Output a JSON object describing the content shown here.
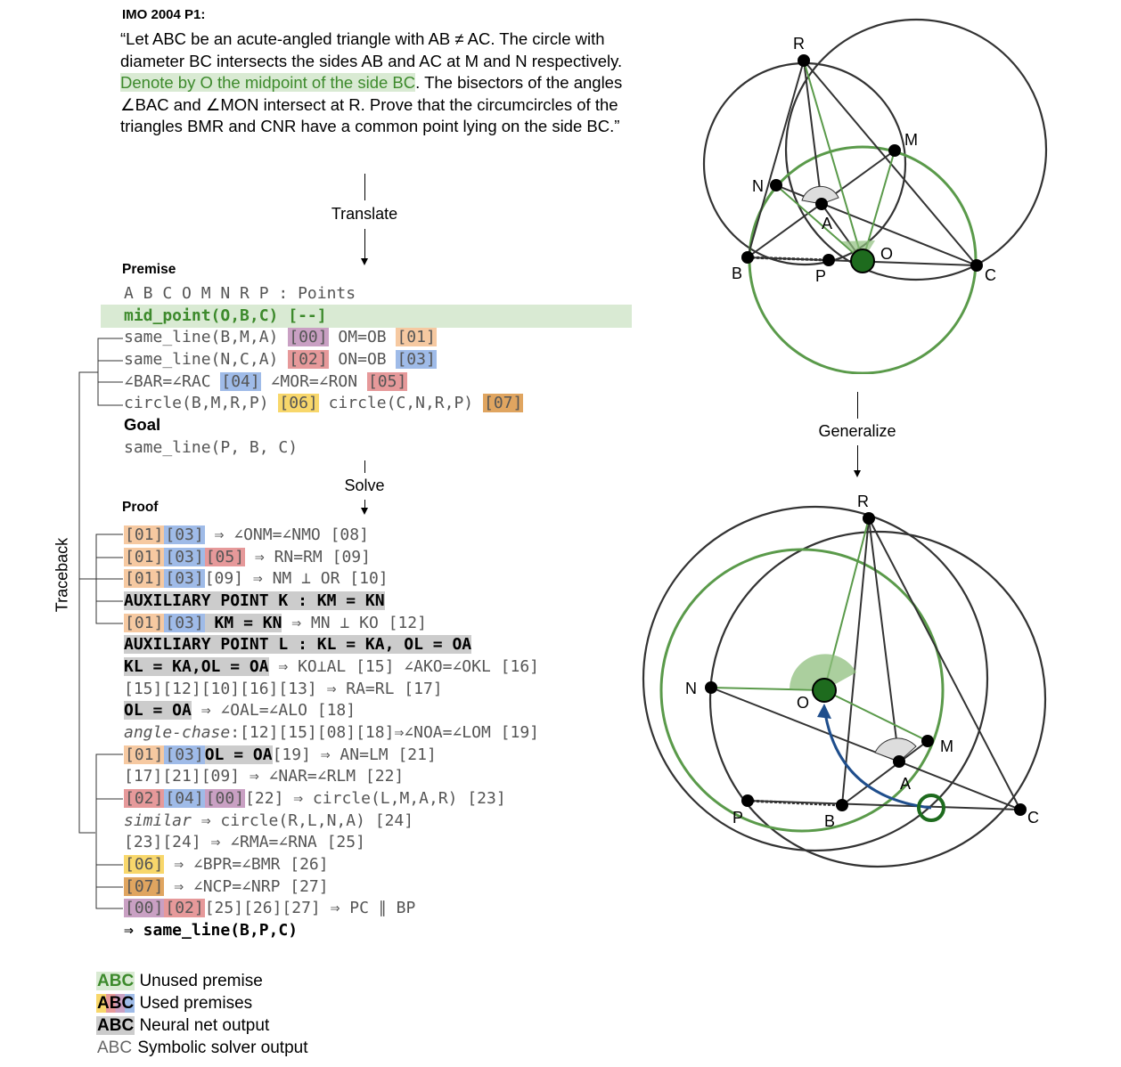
{
  "title": "IMO 2004 P1:",
  "problem": {
    "part1": "“Let ABC be an acute-angled triangle with AB ≠ AC. The circle with diameter BC intersects the sides AB and AC at M and N respectively. ",
    "highlight": "Denote by O the midpoint of the side BC",
    "part2": ". The bisectors of the angles ∠BAC and ∠MON intersect at R. Prove that the circumcircles of the triangles BMR and CNR have a common point lying on the side BC.”"
  },
  "flow": {
    "translate": "Translate",
    "solve": "Solve",
    "generalize": "Generalize",
    "traceback": "Traceback"
  },
  "premise": {
    "heading": "Premise",
    "points": "A B C O M N R P : Points",
    "unused": "mid_point(O,B,C) [--]",
    "rows": [
      {
        "a": "same_line(B,M,A) ",
        "t1": "[00]",
        "b": " OM=OB ",
        "t2": "[01]"
      },
      {
        "a": "same_line(N,C,A) ",
        "t1": "[02]",
        "b": " ON=OB ",
        "t2": "[03]"
      },
      {
        "a": "∠BAR=∠RAC ",
        "t1": "[04]",
        "b": " ∠MOR=∠RON ",
        "t2": "[05]"
      },
      {
        "a": "circle(B,M,R,P) ",
        "t1": "[06]",
        "b": " circle(C,N,R,P) ",
        "t2": "[07]"
      }
    ],
    "goal_heading": "Goal",
    "goal": "same_line(P, B, C)"
  },
  "proof": {
    "heading": "Proof",
    "l1": {
      "t1": "[01]",
      "t2": "[03]",
      "rest": " ⇒ ∠ONM=∠NMO [08]"
    },
    "l2": {
      "t1": "[01]",
      "t2": "[03]",
      "t3": "[05]",
      "rest": " ⇒ RN=RM [09]"
    },
    "l3": {
      "t1": "[01]",
      "t2": "[03]",
      "rest": "[09] ⇒ NM ⊥ OR [10]"
    },
    "l4": "AUXILIARY POINT K : KM = KN",
    "l5": {
      "t1": "[01]",
      "t2": "[03]",
      "n": " KM = KN",
      "rest": " ⇒ MN ⊥ KO [12]"
    },
    "l6": "AUXILIARY POINT L : KL = KA, OL = OA",
    "l7": {
      "n": "KL = KA,OL = OA",
      "rest": " ⇒ KO⊥AL [15] ∠AKO=∠OKL [16]"
    },
    "l8": "[15][12][10][16][13] ⇒ RA=RL [17]",
    "l9": {
      "n": "OL = OA",
      "rest": " ⇒ ∠OAL=∠ALO [18]"
    },
    "l10": {
      "it": "angle-chase",
      "rest": ":[12][15][08][18]⇒∠NOA=∠LOM [19]"
    },
    "l11": {
      "t1": "[01]",
      "t2": "[03]",
      "n": "OL = OA",
      "rest": "[19] ⇒ AN=LM [21]"
    },
    "l12": "[17][21][09] ⇒ ∠NAR=∠RLM [22]",
    "l13": {
      "t1": "[02]",
      "t2": "[04]",
      "t3": "[00]",
      "rest": "[22] ⇒ circle(L,M,A,R) [23]"
    },
    "l14": {
      "it": "similar",
      "rest": " ⇒ circle(R,L,N,A) [24]"
    },
    "l15": "[23][24] ⇒ ∠RMA=∠RNA [25]",
    "l16": {
      "t1": "[06]",
      "rest": " ⇒ ∠BPR=∠BMR [26]"
    },
    "l17": {
      "t1": "[07]",
      "rest": " ⇒ ∠NCP=∠NRP [27]"
    },
    "l18": {
      "t1": "[00]",
      "t2": "[02]",
      "rest": "[25][26][27] ⇒ PC ∥ BP"
    },
    "final": "⇒ same_line(B,P,C)"
  },
  "legend": [
    {
      "swatch": "ABC",
      "label": "Unused premise"
    },
    {
      "swatch": "ABC",
      "label": "Used premises"
    },
    {
      "swatch": "ABC",
      "label": "Neural net output"
    },
    {
      "swatch": "ABC",
      "label": "Symbolic solver output"
    }
  ],
  "fig1_labels": {
    "R": "R",
    "M": "M",
    "N": "N",
    "A": "A",
    "O": "O",
    "B": "B",
    "P": "P",
    "C": "C"
  },
  "fig2_labels": {
    "R": "R",
    "N": "N",
    "O": "O",
    "M": "M",
    "A": "A",
    "P": "P",
    "B": "B",
    "C": "C"
  },
  "colors": {
    "green": "#5a9a4a",
    "darkgreen": "#1e6b1e",
    "blue": "#1f4e8c",
    "line": "#333333"
  }
}
